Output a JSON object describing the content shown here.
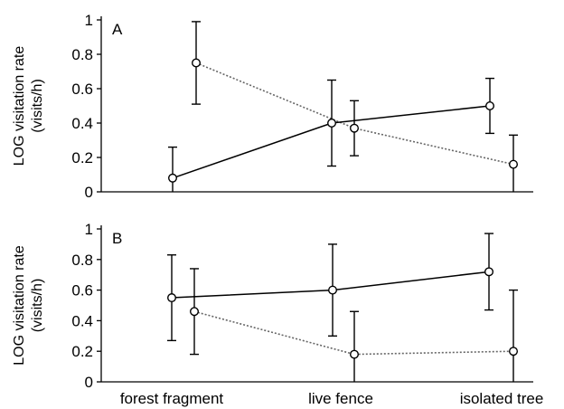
{
  "chart_data": [
    {
      "type": "line",
      "panel_label": "A",
      "ylabel_lines": [
        "LOG visitation rate",
        "(visits/h)"
      ],
      "categories": [
        "forest fragment",
        "live fence",
        "isolated tree"
      ],
      "ylim": [
        0,
        1
      ],
      "yticks": [
        "0",
        "0.2",
        "0.4",
        "0.6",
        "0.8",
        "1"
      ],
      "series": [
        {
          "style": "solid",
          "values": [
            0.08,
            0.4,
            0.5
          ],
          "err": [
            0.18,
            0.25,
            0.16
          ]
        },
        {
          "style": "dotted",
          "values": [
            0.75,
            0.37,
            0.16
          ],
          "err": [
            0.24,
            0.16,
            0.17
          ]
        }
      ]
    },
    {
      "type": "line",
      "panel_label": "B",
      "ylabel_lines": [
        "LOG visitation rate",
        "(visits/h)"
      ],
      "categories": [
        "forest fragment",
        "live fence",
        "isolated tree"
      ],
      "ylim": [
        0,
        1
      ],
      "yticks": [
        "0",
        "0.2",
        "0.4",
        "0.6",
        "0.8",
        "1"
      ],
      "series": [
        {
          "style": "solid",
          "values": [
            0.55,
            0.6,
            0.72
          ],
          "err": [
            0.28,
            0.3,
            0.25
          ]
        },
        {
          "style": "dotted",
          "values": [
            0.46,
            0.18,
            0.2
          ],
          "err": [
            0.28,
            0.28,
            0.4
          ]
        }
      ]
    }
  ]
}
